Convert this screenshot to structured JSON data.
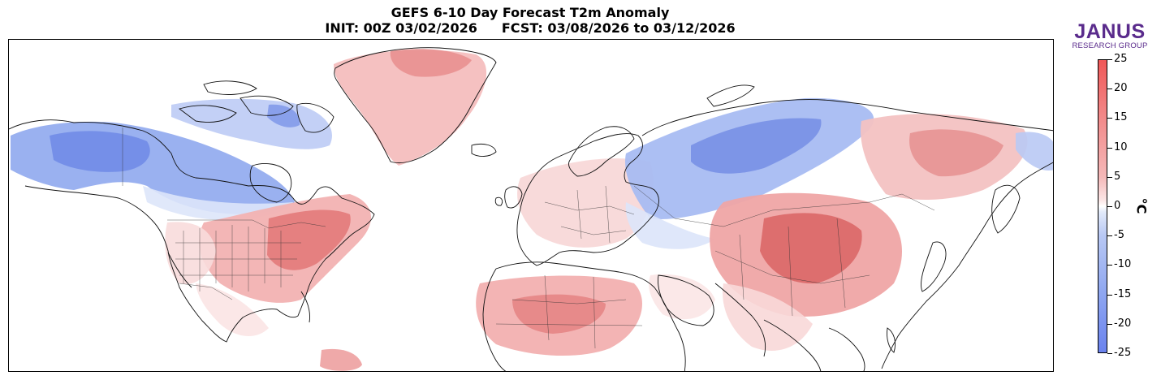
{
  "title": {
    "line1": "GEFS 6-10 Day Forecast T2m Anomaly",
    "init": "INIT: 00Z 03/02/2026",
    "fcst": "FCST: 03/08/2026 to 03/12/2026"
  },
  "logo": {
    "name": "JANUS",
    "subtitle": "RESEARCH GROUP",
    "color": "#5a2b8c"
  },
  "colorbar": {
    "unit": "°C",
    "ticks": [
      "25",
      "20",
      "15",
      "10",
      "5",
      "0",
      "-5",
      "-10",
      "-15",
      "-20",
      "-25"
    ],
    "range": [
      -25,
      25
    ],
    "warm_color": "#f05858",
    "cold_color": "#6a82ee"
  },
  "map": {
    "projection": "equirectangular",
    "region": "Northern Hemisphere"
  }
}
